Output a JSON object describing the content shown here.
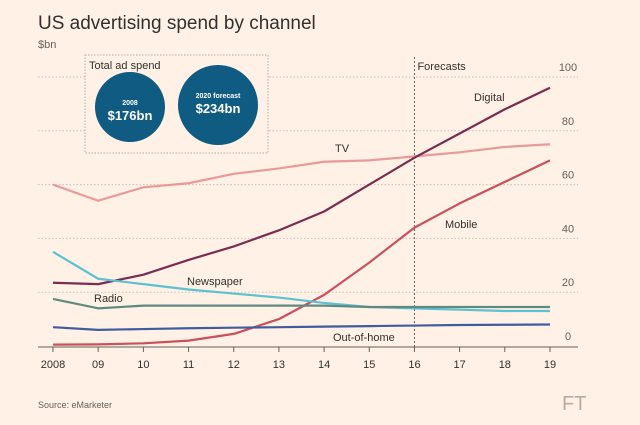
{
  "chart_data": {
    "type": "line",
    "title": "US advertising spend by channel",
    "ylabel": "$bn",
    "xlabel": "",
    "x": [
      2008,
      2009,
      2010,
      2011,
      2012,
      2013,
      2014,
      2015,
      2016,
      2017,
      2018,
      2019
    ],
    "x_tick_labels": [
      "2008",
      "09",
      "10",
      "11",
      "12",
      "13",
      "14",
      "15",
      "16",
      "17",
      "18",
      "19"
    ],
    "ylim": [
      0,
      100
    ],
    "y_ticks": [
      0,
      20,
      40,
      60,
      80,
      100
    ],
    "y_axis_side": "right",
    "grid": "horizontal dotted",
    "forecast_marker": {
      "x": 2016,
      "label": "Forecasts"
    },
    "series": [
      {
        "name": "TV",
        "color": "#e89a98",
        "values": [
          60,
          54,
          59,
          60.5,
          64,
          66,
          68.5,
          69,
          70.5,
          72,
          74,
          75
        ]
      },
      {
        "name": "Digital",
        "color": "#7a2d4f",
        "values": [
          23.5,
          23,
          26.5,
          32,
          37,
          43,
          50,
          60,
          70,
          79,
          88,
          96
        ]
      },
      {
        "name": "Mobile",
        "color": "#c9505c",
        "values": [
          0.5,
          0.6,
          1,
          2,
          4.5,
          10,
          19,
          31,
          44,
          53,
          61,
          69
        ]
      },
      {
        "name": "Newspaper",
        "color": "#5cc1d1",
        "values": [
          35,
          25,
          23,
          21,
          19.5,
          18,
          16,
          14.5,
          14,
          13.5,
          13,
          13
        ]
      },
      {
        "name": "Radio",
        "color": "#5f8a82",
        "values": [
          17.5,
          14,
          15,
          15,
          15,
          15,
          15,
          14.5,
          14.5,
          14.5,
          14.5,
          14.5
        ]
      },
      {
        "name": "Out-of-home",
        "color": "#3f5d9e",
        "values": [
          7,
          6,
          6.3,
          6.6,
          6.8,
          7,
          7.2,
          7.4,
          7.6,
          7.8,
          7.9,
          8
        ]
      }
    ],
    "inset": {
      "label": "Total ad spend",
      "color": "#0f5b82",
      "bubbles": [
        {
          "label": "2008",
          "value_text": "$176bn",
          "value": 176
        },
        {
          "label": "2020 forecast",
          "value_text": "$234bn",
          "value": 234
        }
      ]
    },
    "source": "Source: eMarketer",
    "logo": "FT"
  }
}
